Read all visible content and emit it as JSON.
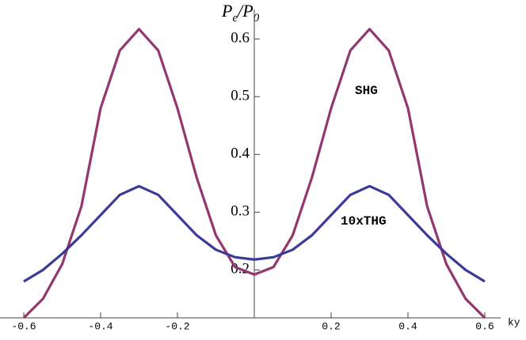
{
  "chart_data": {
    "type": "line",
    "ylabel_parts": [
      "P",
      "e",
      "/P",
      "0"
    ],
    "xlabel": "ky",
    "annotations": [
      "SHG",
      "10xTHG"
    ],
    "x": [
      -0.6,
      -0.55,
      -0.5,
      -0.45,
      -0.4,
      -0.35,
      -0.3,
      -0.25,
      -0.2,
      -0.15,
      -0.1,
      -0.05,
      0,
      0.05,
      0.1,
      0.15,
      0.2,
      0.25,
      0.3,
      0.35,
      0.4,
      0.45,
      0.5,
      0.55,
      0.6
    ],
    "series": [
      {
        "name": "SHG",
        "color": "#93386f",
        "values": [
          0.117,
          0.15,
          0.21,
          0.31,
          0.48,
          0.58,
          0.617,
          0.58,
          0.48,
          0.36,
          0.26,
          0.205,
          0.192,
          0.205,
          0.26,
          0.36,
          0.48,
          0.58,
          0.617,
          0.58,
          0.48,
          0.31,
          0.21,
          0.15,
          0.117
        ]
      },
      {
        "name": "10xTHG",
        "color": "#3b3b98",
        "values": [
          0.18,
          0.2,
          0.228,
          0.26,
          0.295,
          0.33,
          0.345,
          0.33,
          0.295,
          0.26,
          0.235,
          0.222,
          0.218,
          0.222,
          0.235,
          0.26,
          0.295,
          0.33,
          0.345,
          0.33,
          0.295,
          0.26,
          0.228,
          0.2,
          0.18
        ]
      }
    ],
    "xlim": [
      -0.6,
      0.6
    ],
    "ylim": [
      0.117,
      0.64
    ],
    "xticks": [
      -0.6,
      -0.4,
      -0.2,
      0.2,
      0.4,
      0.6
    ],
    "yticks": [
      0.2,
      0.3,
      0.4,
      0.5,
      0.6
    ]
  }
}
